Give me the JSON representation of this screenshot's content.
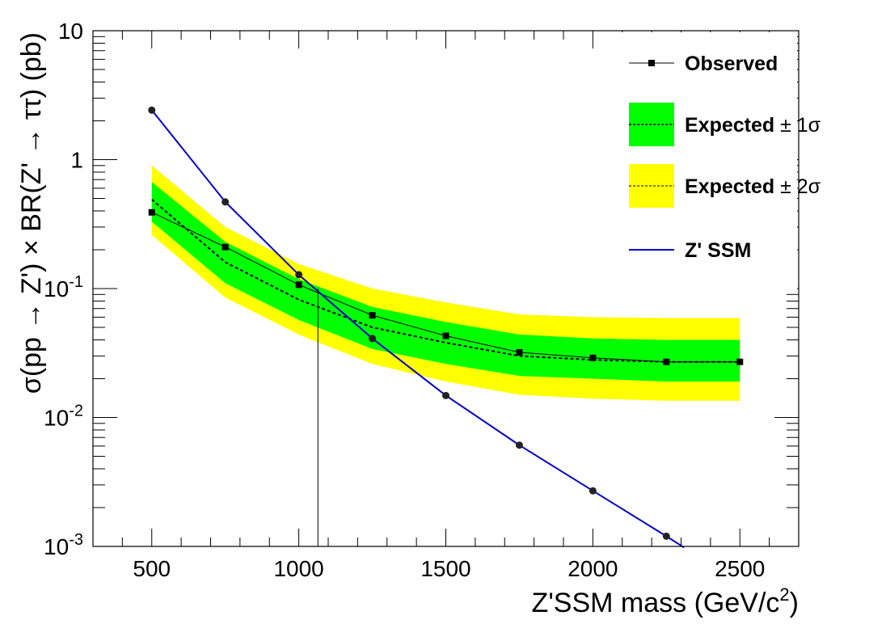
{
  "chart_data": {
    "type": "line",
    "xlabel": "Z'SSM mass (GeV/c²)",
    "xlabel_main": "Z'SSM mass (GeV/c",
    "xlabel_sup": "2",
    "xlabel_end": ")",
    "ylabel": "σ(pp → Z') × BR(Z' → ττ) (pb)",
    "xlim": [
      300,
      2700
    ],
    "ylim": [
      0.001,
      10
    ],
    "yscale": "log",
    "grid": false,
    "legend_position": "top-right",
    "x_ticks": [
      {
        "value": 500,
        "label": "500"
      },
      {
        "value": 1000,
        "label": "1000"
      },
      {
        "value": 1500,
        "label": "1500"
      },
      {
        "value": 2000,
        "label": "2000"
      },
      {
        "value": 2500,
        "label": "2500"
      }
    ],
    "y_ticks": [
      {
        "value": 10,
        "base": "10",
        "exp": ""
      },
      {
        "value": 1,
        "base": "1",
        "exp": ""
      },
      {
        "value": 0.1,
        "base": "10",
        "exp": "-1"
      },
      {
        "value": 0.01,
        "base": "10",
        "exp": "-2"
      },
      {
        "value": 0.001,
        "base": "10",
        "exp": "-3"
      }
    ],
    "x": [
      500,
      750,
      1000,
      1250,
      1500,
      1750,
      2000,
      2250,
      2500
    ],
    "observed": [
      0.39,
      0.21,
      0.107,
      0.062,
      0.043,
      0.032,
      0.029,
      0.027,
      0.027
    ],
    "expected": [
      0.49,
      0.16,
      0.082,
      0.05,
      0.038,
      0.03,
      0.028,
      0.027,
      0.027
    ],
    "band_1sigma_low": [
      0.33,
      0.11,
      0.057,
      0.034,
      0.026,
      0.021,
      0.02,
      0.019,
      0.019
    ],
    "band_1sigma_high": [
      0.67,
      0.23,
      0.118,
      0.072,
      0.055,
      0.044,
      0.041,
      0.04,
      0.04
    ],
    "band_2sigma_low": [
      0.26,
      0.085,
      0.044,
      0.026,
      0.019,
      0.015,
      0.014,
      0.0135,
      0.0135
    ],
    "band_2sigma_high": [
      0.9,
      0.3,
      0.155,
      0.1,
      0.078,
      0.063,
      0.06,
      0.059,
      0.059
    ],
    "ssm_x": [
      500,
      750,
      1000,
      1250,
      1500,
      1750,
      2000,
      2250
    ],
    "ssm": [
      2.42,
      0.47,
      0.128,
      0.041,
      0.0148,
      0.0061,
      0.0027,
      0.0012
    ],
    "ssm_end": {
      "x": 2310,
      "y": 0.00098
    },
    "limit_line_x": 1065,
    "colors": {
      "band_1sigma": "#00ff00",
      "band_2sigma": "#ffff00",
      "ssm_line": "#0000cc",
      "observed": "#000000"
    },
    "legend": [
      {
        "key": "observed",
        "label": "Observed"
      },
      {
        "key": "sigma1",
        "label": "Expected",
        "sym": "± 1σ"
      },
      {
        "key": "sigma2",
        "label": "Expected",
        "sym": "± 2σ"
      },
      {
        "key": "ssm",
        "label": "Z' SSM"
      }
    ]
  }
}
